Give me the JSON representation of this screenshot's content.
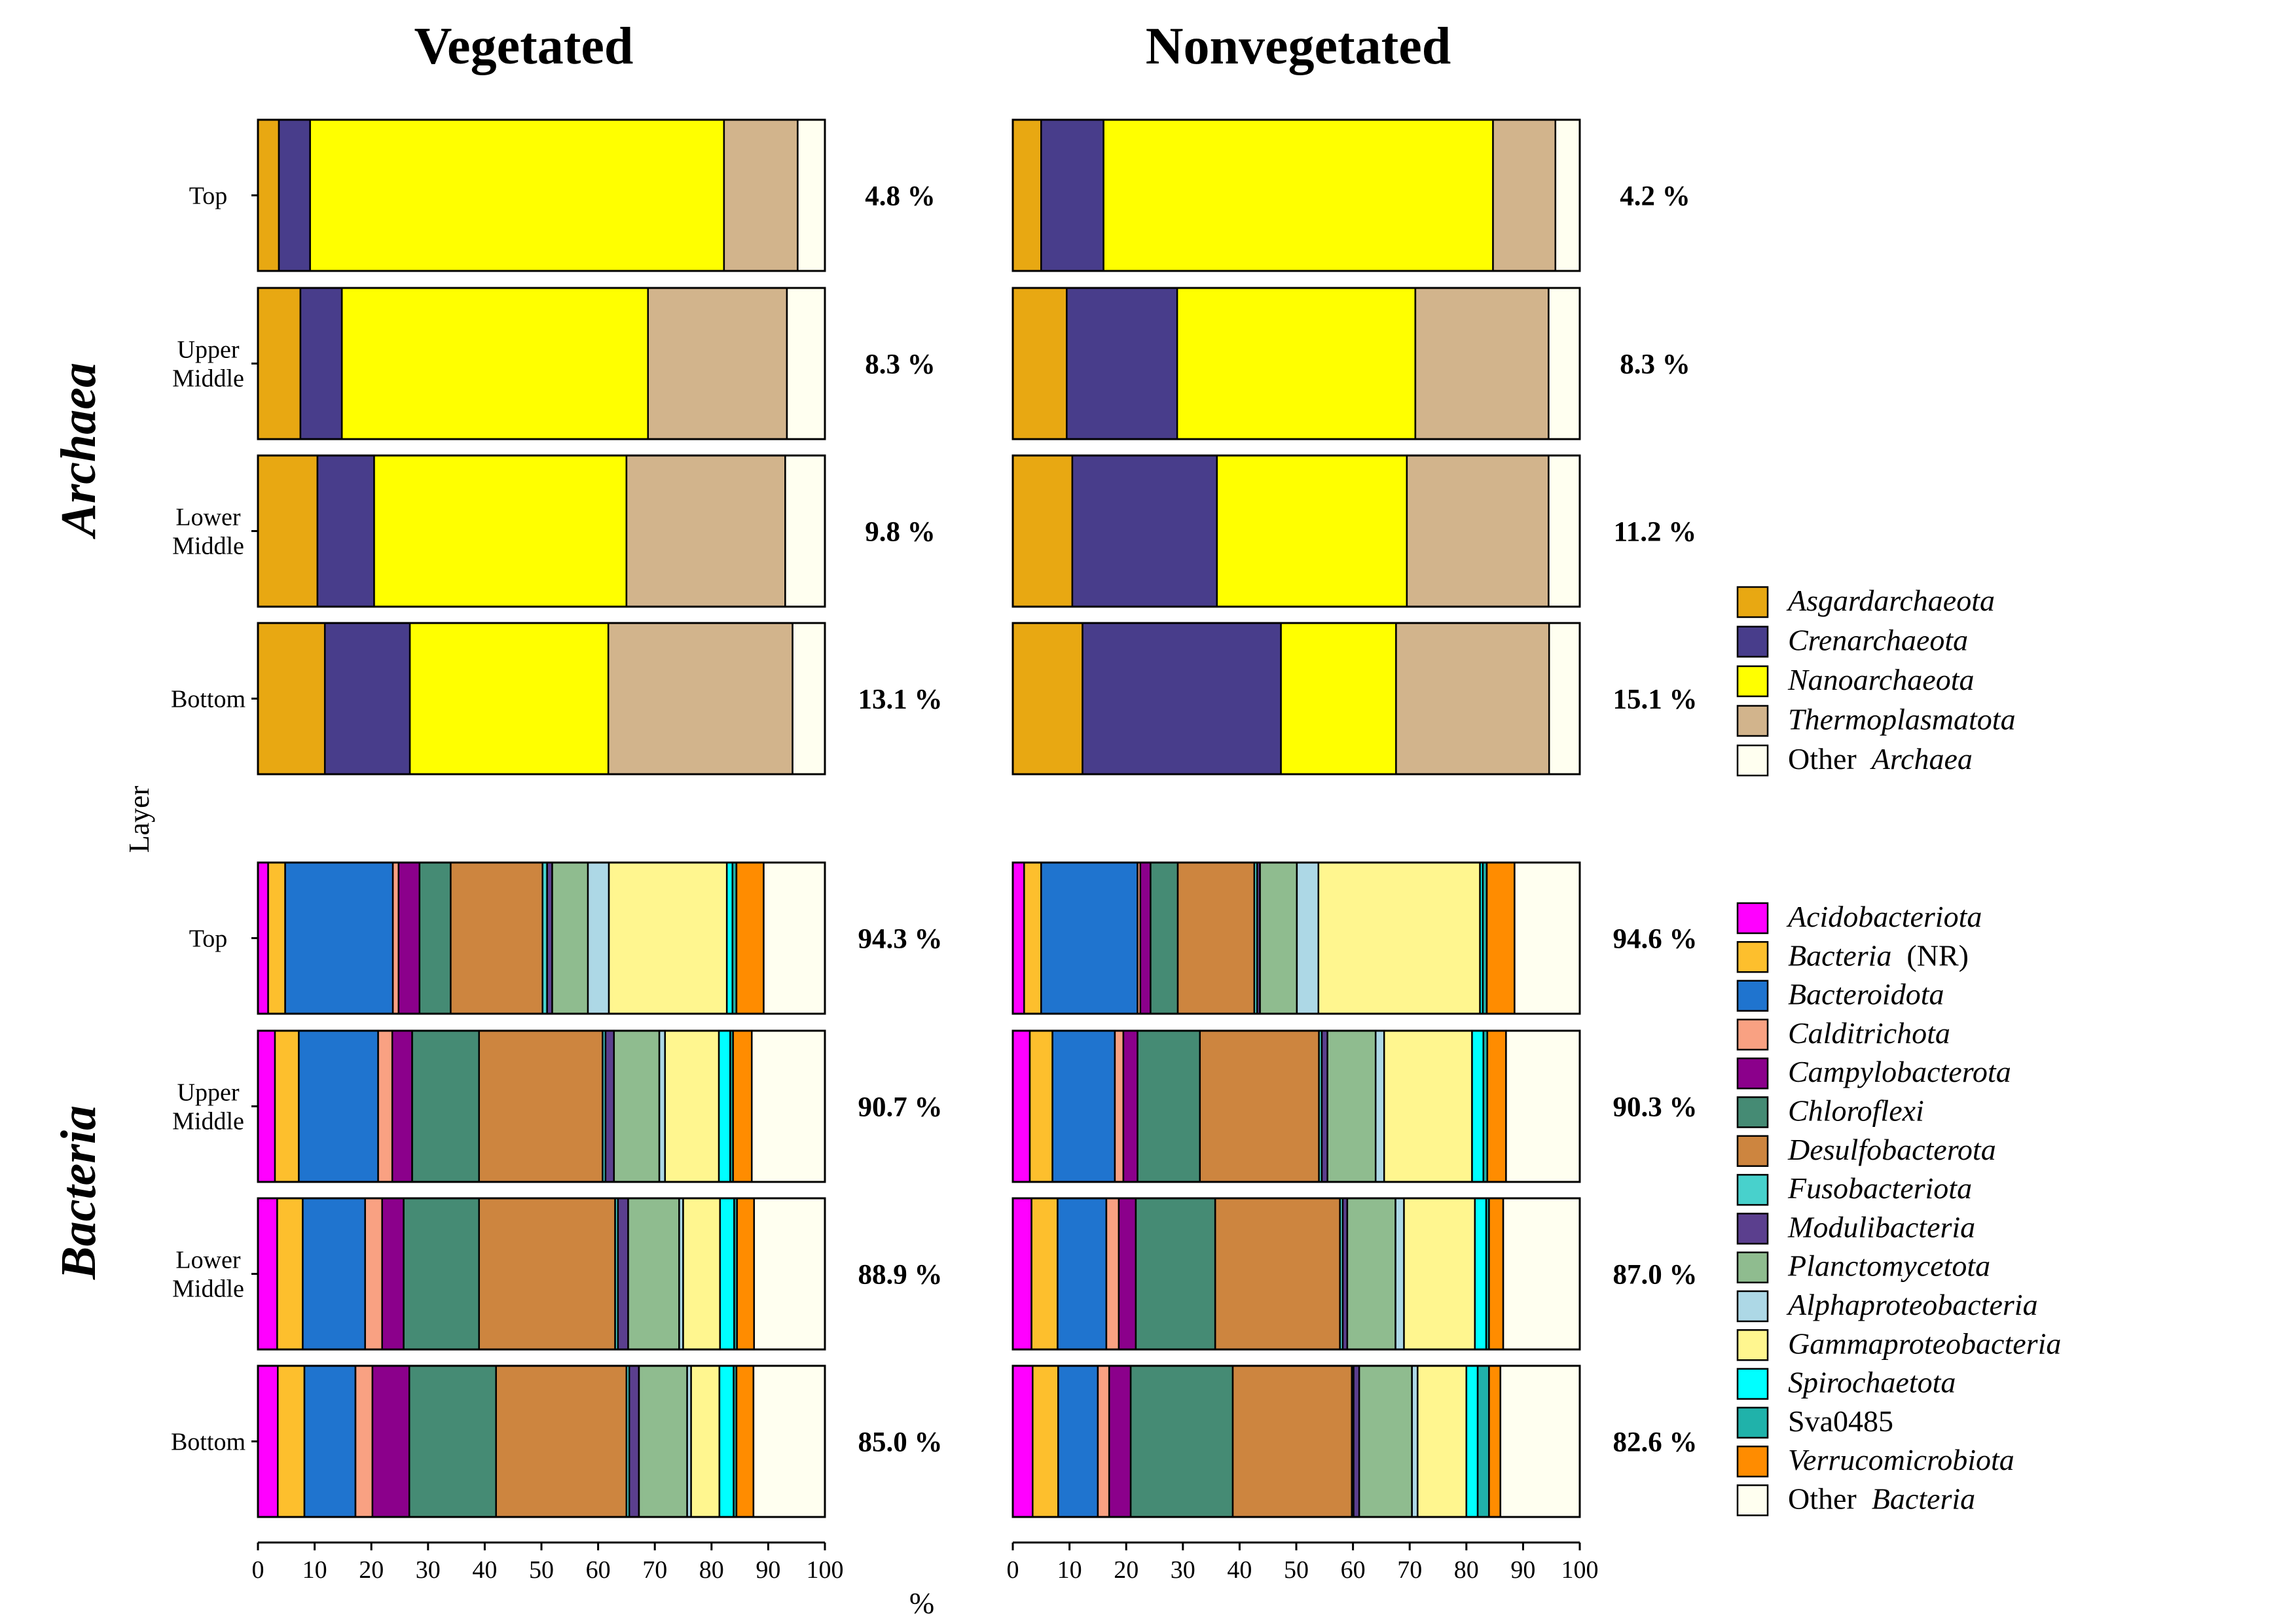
{
  "panel_titles": [
    "Vegetated",
    "Nonvegetated"
  ],
  "group_labels": [
    "Archaea",
    "Bacteria"
  ],
  "layers": [
    "Top",
    "Upper\nMiddle",
    "Lower\nMiddle",
    "Bottom"
  ],
  "y_axis_title": "Layer",
  "x_axis_title": "%",
  "x_ticks": [
    0,
    10,
    20,
    30,
    40,
    50,
    60,
    70,
    80,
    90,
    100
  ],
  "archaea_taxa": [
    {
      "name": "Asgardarchaeota",
      "color": "#E8A812",
      "italic": true
    },
    {
      "name": "Crenarchaeota",
      "color": "#483D8B",
      "italic": true
    },
    {
      "name": "Nanoarchaeota",
      "color": "#FFFF00",
      "italic": true
    },
    {
      "name": "Thermoplasmatota",
      "color": "#D2B48C",
      "italic": true
    },
    {
      "name": "Other Archaea",
      "prefix": "Other",
      "italic_part": "Archaea",
      "color": "#FFFFF0"
    }
  ],
  "bacteria_taxa": [
    {
      "name": "Acidobacteriota",
      "color": "#FF00FF",
      "italic": true
    },
    {
      "name": "Bacteria (NR)",
      "italic_part": "Bacteria",
      "suffix": "(NR)",
      "color": "#FDBF2D"
    },
    {
      "name": "Bacteroidota",
      "color": "#1F74CF",
      "italic": true
    },
    {
      "name": "Calditrichota",
      "color": "#F9A182",
      "italic": true
    },
    {
      "name": "Campylobacterota",
      "color": "#8B008B",
      "italic": true
    },
    {
      "name": "Chloroflexi",
      "color": "#458B74",
      "italic": true
    },
    {
      "name": "Desulfobacterota",
      "color": "#CD853F",
      "italic": true
    },
    {
      "name": "Fusobacteriota",
      "color": "#48D1CC",
      "italic": true
    },
    {
      "name": "Modulibacteria",
      "color": "#5B3F8E",
      "italic": true
    },
    {
      "name": "Planctomycetota",
      "color": "#8FBC8F",
      "italic": true
    },
    {
      "name": "Alphaproteobacteria",
      "color": "#ADD8E6",
      "italic": true
    },
    {
      "name": "Gammaproteobacteria",
      "color": "#FFF68F",
      "italic": true
    },
    {
      "name": "Spirochaetota",
      "color": "#00FFFF",
      "italic": true
    },
    {
      "name": "Sva0485",
      "color": "#20B2AA",
      "italic": false
    },
    {
      "name": "Verrucomicrobiota",
      "color": "#FF8C00",
      "italic": true
    },
    {
      "name": "Other Bacteria",
      "prefix": "Other",
      "italic_part": "Bacteria",
      "color": "#FFFFF0"
    }
  ],
  "chart_data": {
    "type": "bar",
    "orientation": "horizontal",
    "stacked": true,
    "xlim": [
      0,
      100
    ],
    "panels": [
      {
        "title": "Vegetated",
        "archaea": {
          "percent_labels": [
            "4.8 %",
            "8.3 %",
            "9.8 %",
            "13.1 %"
          ],
          "rows": [
            [
              3.7,
              5.5,
              73.0,
              13.0,
              4.8
            ],
            [
              7.5,
              7.3,
              54.0,
              24.5,
              6.7
            ],
            [
              10.5,
              10.0,
              44.5,
              28.0,
              7.0
            ],
            [
              11.8,
              15.0,
              35.0,
              32.5,
              5.7
            ]
          ]
        },
        "bacteria": {
          "percent_labels": [
            "94.3 %",
            "90.7 %",
            "88.9 %",
            "85.0 %"
          ],
          "rows": [
            [
              1.8,
              3.0,
              19.0,
              1.0,
              3.7,
              5.5,
              16.2,
              0.8,
              0.9,
              6.3,
              3.7,
              20.8,
              1.0,
              0.7,
              4.8,
              11.6
            ],
            [
              3.0,
              4.2,
              14.0,
              2.5,
              3.5,
              11.8,
              21.8,
              0.5,
              1.5,
              8.0,
              1.0,
              9.5,
              2.0,
              0.5,
              3.3,
              13.0
            ],
            [
              3.4,
              4.5,
              11.0,
              3.0,
              3.8,
              13.3,
              24.0,
              0.5,
              1.8,
              9.0,
              0.7,
              6.5,
              2.5,
              0.5,
              3.0,
              12.5
            ],
            [
              3.5,
              4.7,
              9.0,
              3.0,
              6.5,
              15.3,
              23.0,
              0.5,
              1.7,
              8.5,
              0.7,
              5.0,
              2.5,
              0.5,
              3.0,
              13.0
            ]
          ]
        }
      },
      {
        "title": "Nonvegetated",
        "archaea": {
          "percent_labels": [
            "4.2 %",
            "8.3 %",
            "11.2 %",
            "15.1 %"
          ],
          "rows": [
            [
              5.0,
              11.0,
              68.7,
              11.0,
              4.3
            ],
            [
              9.5,
              19.5,
              42.0,
              23.5,
              5.5
            ],
            [
              10.5,
              25.5,
              33.5,
              25.0,
              5.5
            ],
            [
              12.3,
              35.0,
              20.3,
              27.0,
              5.4
            ]
          ]
        },
        "bacteria": {
          "percent_labels": [
            "94.6 %",
            "90.3 %",
            "87.0 %",
            "82.6 %"
          ],
          "rows": [
            [
              2.0,
              3.0,
              17.0,
              0.5,
              1.8,
              4.8,
              13.5,
              0.5,
              0.5,
              6.5,
              3.8,
              28.5,
              0.5,
              0.7,
              4.9,
              11.5
            ],
            [
              3.0,
              4.0,
              11.0,
              1.5,
              2.5,
              11.0,
              21.0,
              0.5,
              1.0,
              8.5,
              1.5,
              15.5,
              2.0,
              0.7,
              3.3,
              13.5
            ],
            [
              3.3,
              4.6,
              8.6,
              2.2,
              3.0,
              14.0,
              22.0,
              0.5,
              0.8,
              8.5,
              1.5,
              12.5,
              2.0,
              0.5,
              2.5,
              13.5
            ],
            [
              3.5,
              4.5,
              7.0,
              2.0,
              3.8,
              18.0,
              21.0,
              0.3,
              1.0,
              9.3,
              1.0,
              8.6,
              2.0,
              2.0,
              2.0,
              14.0
            ]
          ]
        }
      }
    ]
  }
}
